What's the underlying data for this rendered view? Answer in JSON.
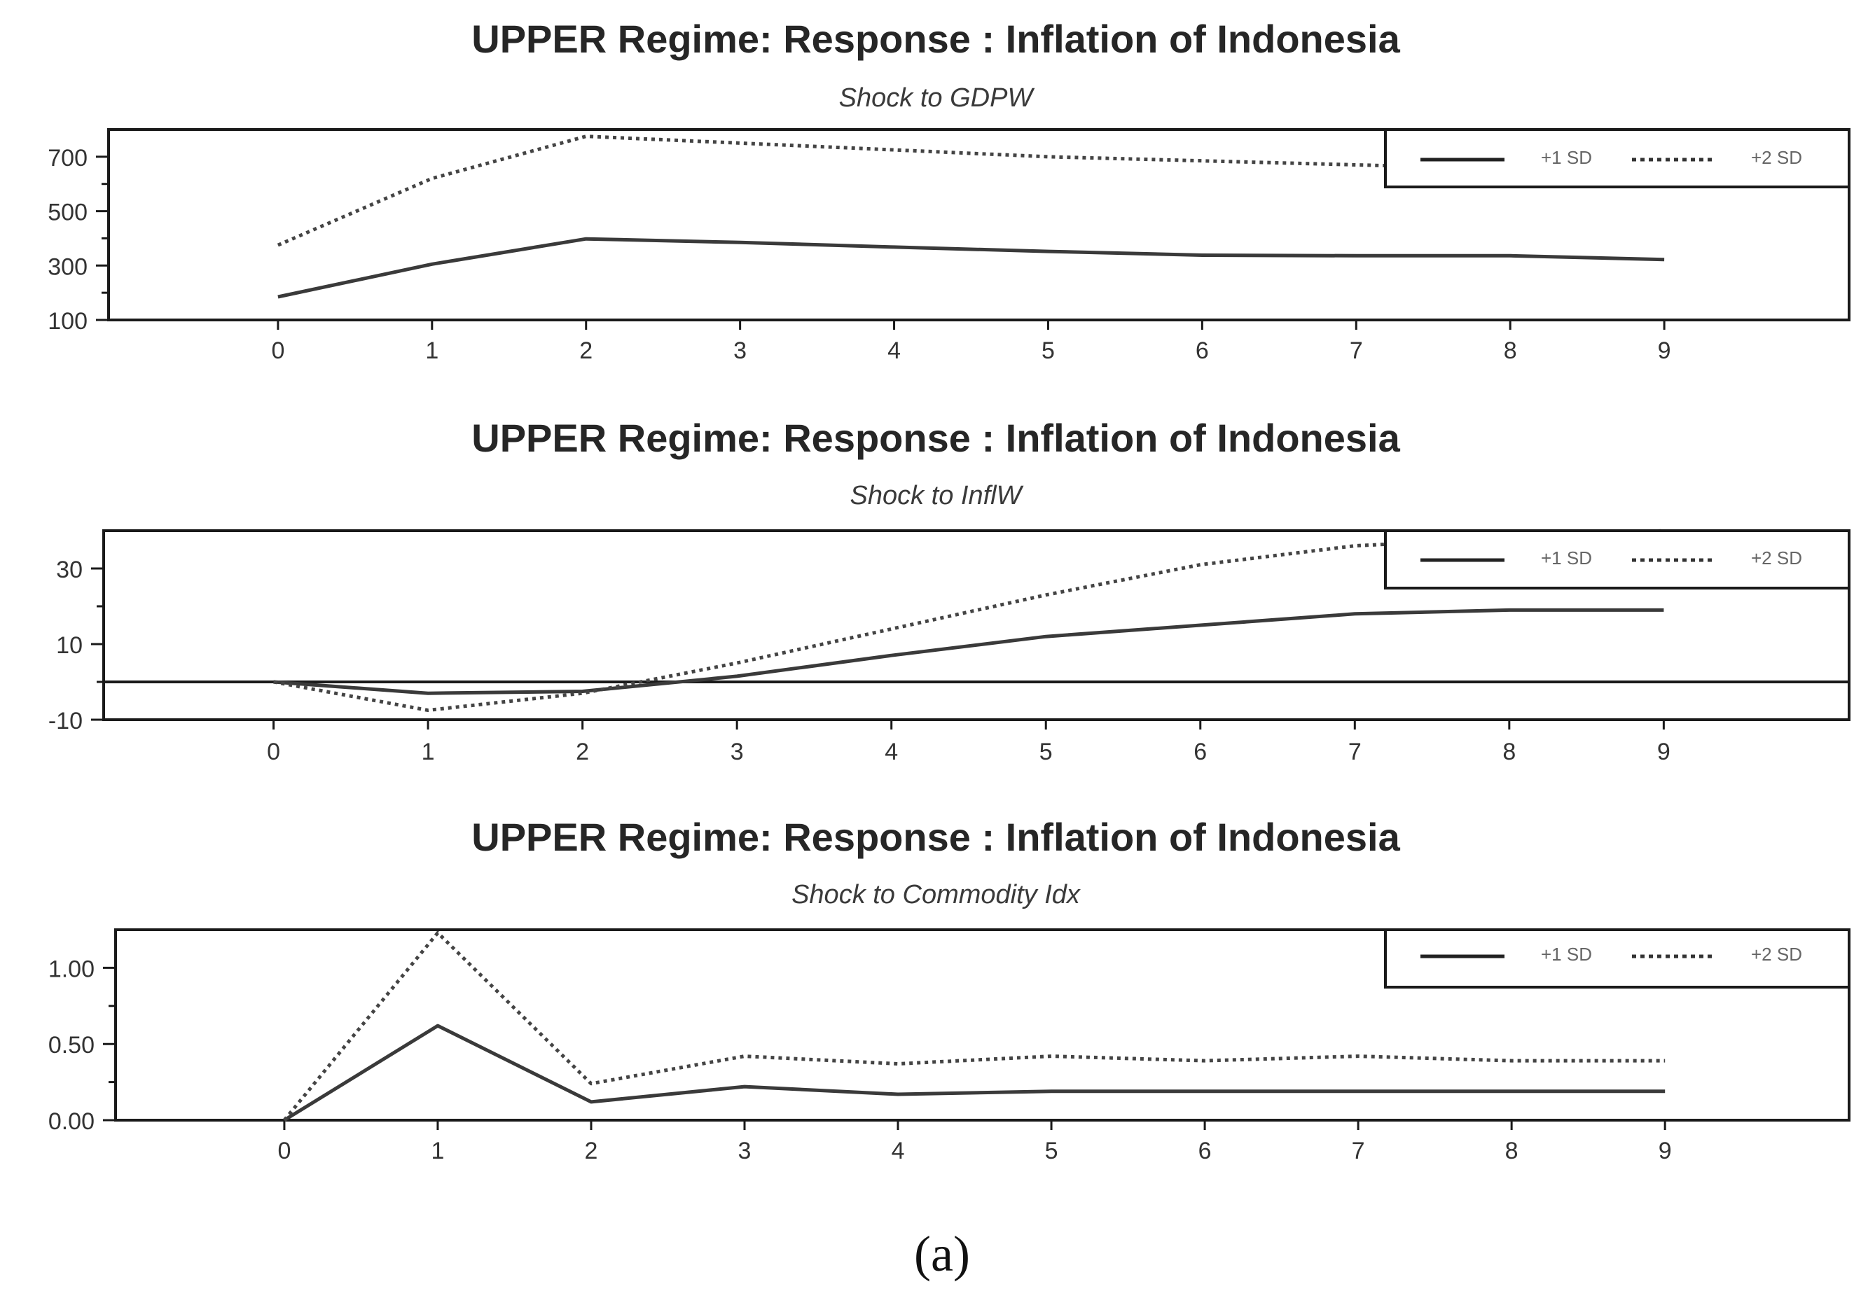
{
  "figure": {
    "caption": "(a)"
  },
  "chart_data": [
    {
      "type": "line",
      "title": "UPPER Regime: Response : Inflation of Indonesia",
      "subtitle": "Shock to GDPW",
      "x": [
        0,
        1,
        2,
        3,
        4,
        5,
        6,
        7,
        8,
        9
      ],
      "series": [
        {
          "name": "+1 SD",
          "style": "solid",
          "values": [
            185,
            305,
            398,
            385,
            368,
            352,
            338,
            336,
            336,
            322
          ]
        },
        {
          "name": "+2 SD",
          "style": "dotted",
          "values": [
            375,
            620,
            775,
            750,
            725,
            700,
            685,
            670,
            655,
            640
          ]
        }
      ],
      "yticks": [
        100,
        300,
        500,
        700
      ],
      "ytick_labels": [
        "100",
        "300",
        "500",
        "700"
      ],
      "ylim": [
        100,
        800
      ],
      "xlim": [
        -1.1,
        10.2
      ],
      "zero_line": false,
      "legend_position": "top-right",
      "grid": false
    },
    {
      "type": "line",
      "title": "UPPER Regime: Response : Inflation of Indonesia",
      "subtitle": "Shock to InflW",
      "x": [
        0,
        1,
        2,
        3,
        4,
        5,
        6,
        7,
        8,
        9
      ],
      "series": [
        {
          "name": "+1 SD",
          "style": "solid",
          "values": [
            0,
            -3,
            -2.5,
            1.5,
            7,
            12,
            15,
            18,
            19,
            19
          ]
        },
        {
          "name": "+2 SD",
          "style": "dotted",
          "values": [
            0,
            -7.5,
            -3,
            5,
            14,
            23,
            31,
            36,
            38,
            40
          ]
        }
      ],
      "yticks": [
        -10,
        10,
        30
      ],
      "ytick_labels": [
        "-10",
        "10",
        "30"
      ],
      "ylim": [
        -10,
        40
      ],
      "xlim": [
        -1.1,
        10.2
      ],
      "zero_line": true,
      "legend_position": "top-right",
      "grid": false
    },
    {
      "type": "line",
      "title": "UPPER Regime: Response : Inflation of Indonesia",
      "subtitle": "Shock to Commodity Idx",
      "x": [
        0,
        1,
        2,
        3,
        4,
        5,
        6,
        7,
        8,
        9
      ],
      "series": [
        {
          "name": "+1 SD",
          "style": "solid",
          "values": [
            0,
            0.62,
            0.12,
            0.22,
            0.17,
            0.19,
            0.19,
            0.19,
            0.19,
            0.19
          ]
        },
        {
          "name": "+2 SD",
          "style": "dotted",
          "values": [
            0,
            1.23,
            0.24,
            0.42,
            0.37,
            0.42,
            0.39,
            0.42,
            0.39,
            0.39
          ]
        }
      ],
      "yticks": [
        0.0,
        0.5,
        1.0
      ],
      "ytick_labels": [
        "0.00",
        "0.50",
        "1.00"
      ],
      "ylim": [
        0,
        1.25
      ],
      "xlim": [
        -1.1,
        10.2
      ],
      "zero_line": false,
      "legend_position": "top-right",
      "grid": false
    }
  ]
}
